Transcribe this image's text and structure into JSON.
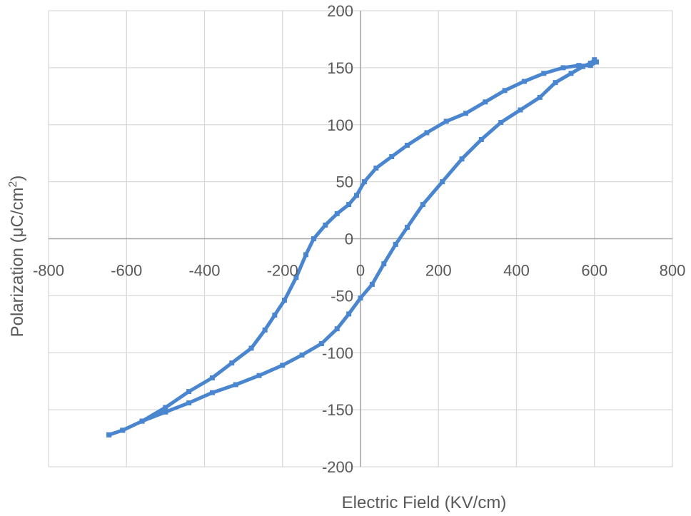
{
  "chart_data": {
    "type": "scatter",
    "title": "",
    "xlabel": "Electric Field (KV/cm)",
    "ylabel": "Polarization (μC/cm",
    "ylabel_superscript": "2",
    "ylabel_suffix": ")",
    "xlim": [
      -800,
      800
    ],
    "ylim": [
      -200,
      200
    ],
    "x_ticks": [
      -800,
      -600,
      -400,
      -200,
      0,
      200,
      400,
      600,
      800
    ],
    "y_ticks": [
      200,
      150,
      100,
      50,
      0,
      -50,
      -100,
      -150,
      -200
    ],
    "grid": true,
    "legend": "none",
    "series": [
      {
        "color": "#4a86cf",
        "points": [
          [
            -645,
            -172
          ],
          [
            -610,
            -168
          ],
          [
            -560,
            -160
          ],
          [
            -500,
            -152
          ],
          [
            -440,
            -144
          ],
          [
            -380,
            -135
          ],
          [
            -320,
            -128
          ],
          [
            -260,
            -120
          ],
          [
            -200,
            -111
          ],
          [
            -150,
            -102
          ],
          [
            -100,
            -92
          ],
          [
            -60,
            -79
          ],
          [
            -30,
            -66
          ],
          [
            0,
            -52
          ],
          [
            30,
            -40
          ],
          [
            60,
            -22
          ],
          [
            90,
            -5
          ],
          [
            120,
            10
          ],
          [
            160,
            30
          ],
          [
            210,
            50
          ],
          [
            260,
            70
          ],
          [
            310,
            87
          ],
          [
            360,
            102
          ],
          [
            410,
            113
          ],
          [
            460,
            124
          ],
          [
            500,
            137
          ],
          [
            540,
            145
          ],
          [
            570,
            151
          ],
          [
            590,
            154
          ],
          [
            600,
            157
          ],
          [
            605,
            155
          ],
          [
            590,
            152
          ],
          [
            560,
            152
          ],
          [
            520,
            150
          ],
          [
            470,
            145
          ],
          [
            420,
            138
          ],
          [
            370,
            130
          ],
          [
            320,
            120
          ],
          [
            270,
            110
          ],
          [
            220,
            103
          ],
          [
            170,
            93
          ],
          [
            120,
            82
          ],
          [
            80,
            72
          ],
          [
            40,
            62
          ],
          [
            10,
            50
          ],
          [
            -10,
            38
          ],
          [
            -30,
            30
          ],
          [
            -60,
            22
          ],
          [
            -90,
            12
          ],
          [
            -120,
            0
          ],
          [
            -140,
            -14
          ],
          [
            -165,
            -34
          ],
          [
            -195,
            -54
          ],
          [
            -220,
            -67
          ],
          [
            -245,
            -80
          ],
          [
            -280,
            -96
          ],
          [
            -330,
            -109
          ],
          [
            -380,
            -122
          ],
          [
            -440,
            -134
          ],
          [
            -500,
            -148
          ],
          [
            -560,
            -160
          ],
          [
            -610,
            -168
          ],
          [
            -645,
            -172
          ]
        ]
      }
    ]
  }
}
